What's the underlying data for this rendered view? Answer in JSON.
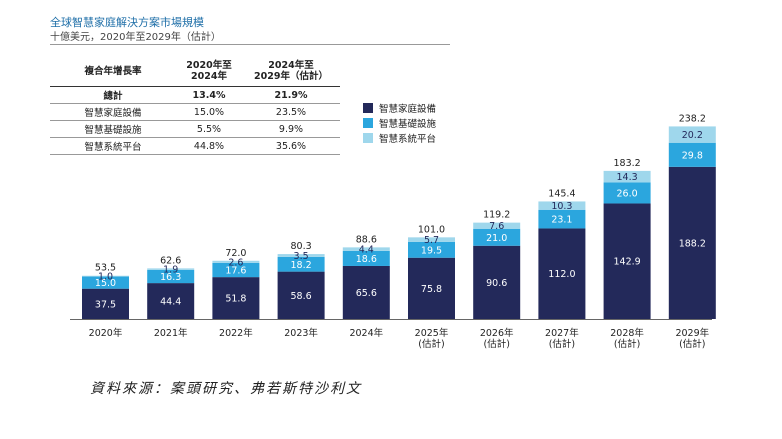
{
  "title": "全球智慧家庭解決方案市場規模",
  "subtitle": "十億美元，2020年至2029年（估計）",
  "growth_table": {
    "header": [
      "複合年增長率",
      "2020年至\n2024年",
      "2024年至\n2029年（估計）"
    ],
    "rows": [
      {
        "label": "總計",
        "a": "13.4%",
        "b": "21.9%",
        "bold": true
      },
      {
        "label": "智慧家庭設備",
        "a": "15.0%",
        "b": "23.5%",
        "bold": false
      },
      {
        "label": "智慧基礎設施",
        "a": "5.5%",
        "b": "9.9%",
        "bold": false
      },
      {
        "label": "智慧系統平台",
        "a": "44.8%",
        "b": "35.6%",
        "bold": false
      }
    ]
  },
  "colors": {
    "devices": "#23295a",
    "infrastructure": "#2ba6de",
    "platform": "#9fd7ec"
  },
  "source": "資料來源：案頭研究、弗若斯特沙利文",
  "chart_data": {
    "type": "bar",
    "stacked": true,
    "categories": [
      "2020年",
      "2021年",
      "2022年",
      "2023年",
      "2024年",
      "2025年\n(估計)",
      "2026年\n(估計)",
      "2027年\n(估計)",
      "2028年\n(估計)",
      "2029年\n(估計)"
    ],
    "series": [
      {
        "name": "智慧家庭設備",
        "values": [
          37.5,
          44.4,
          51.8,
          58.6,
          65.6,
          75.8,
          90.6,
          112.0,
          142.9,
          188.2
        ]
      },
      {
        "name": "智慧基礎設施",
        "values": [
          15.0,
          16.3,
          17.6,
          18.2,
          18.6,
          19.5,
          21.0,
          23.1,
          26.0,
          29.8
        ]
      },
      {
        "name": "智慧系統平台",
        "values": [
          1.0,
          1.9,
          2.6,
          3.5,
          4.4,
          5.7,
          7.6,
          10.3,
          14.3,
          20.2
        ]
      }
    ],
    "totals": [
      53.5,
      62.6,
      72.0,
      80.3,
      88.6,
      101.0,
      119.2,
      145.4,
      183.2,
      238.2
    ],
    "legend_position": "right of table"
  }
}
